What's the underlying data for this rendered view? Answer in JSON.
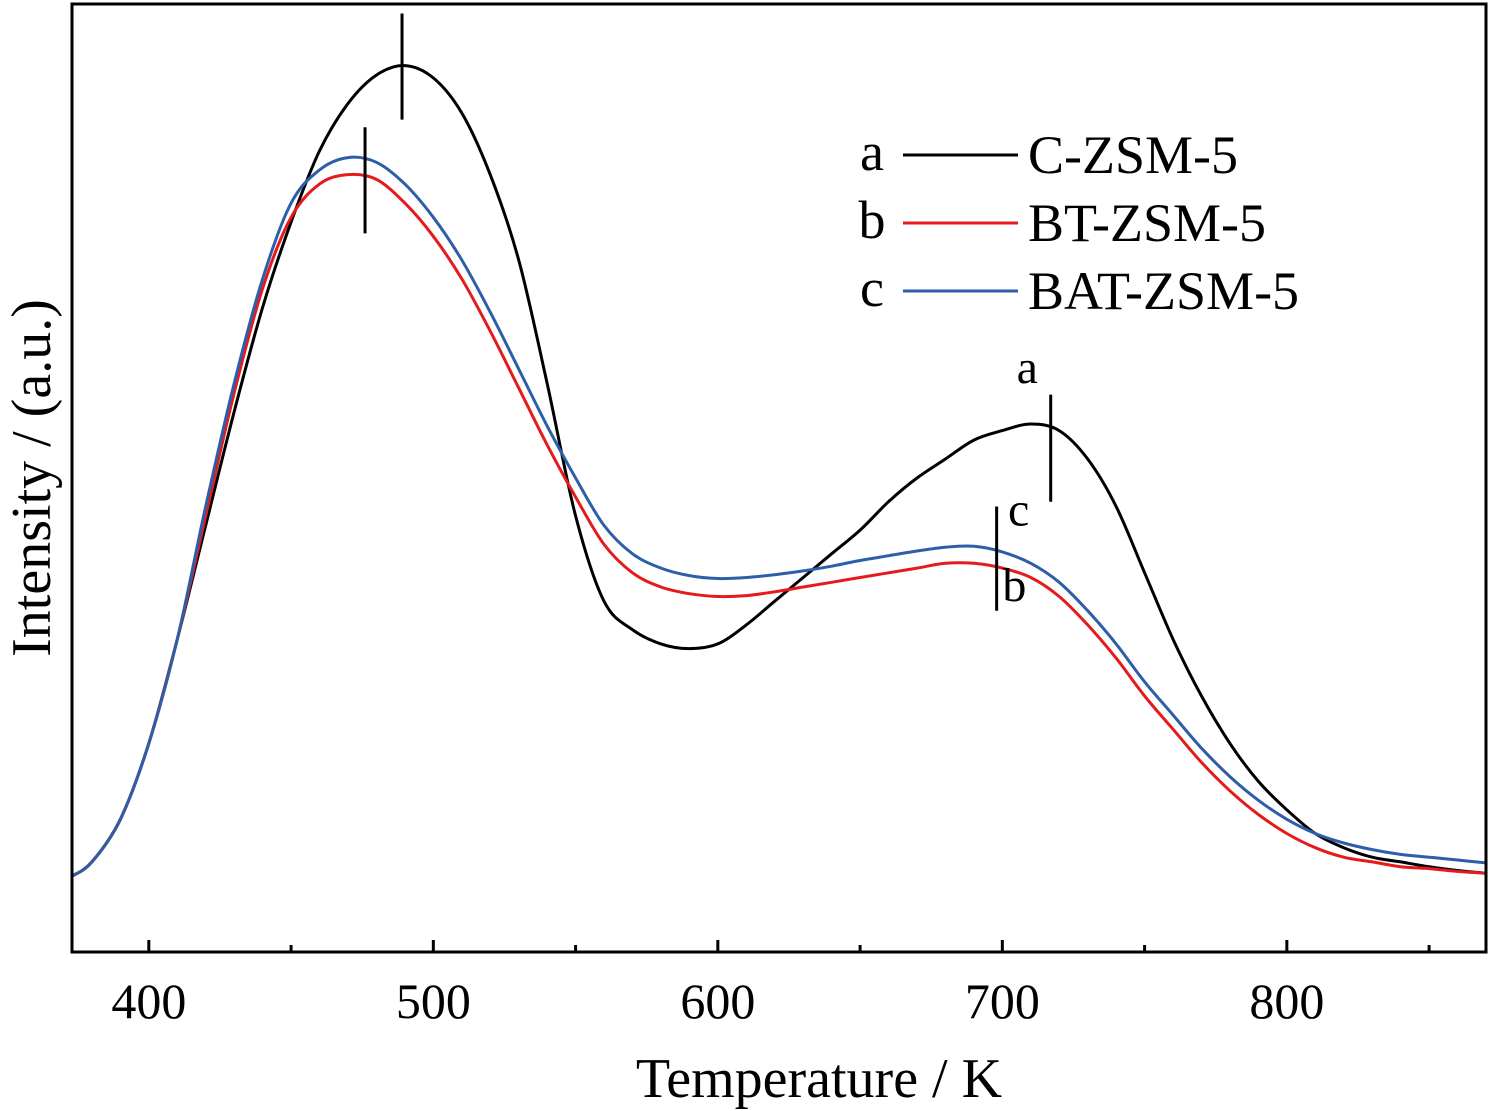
{
  "chart_data": {
    "type": "line",
    "xlabel": "Temperature / K",
    "ylabel": "Intensity / (a.u.)",
    "xlim": [
      373,
      870
    ],
    "ylim": [
      0,
      1.0
    ],
    "x_ticks": [
      400,
      500,
      600,
      700,
      800
    ],
    "x_minor_ticks": [
      450,
      550,
      650,
      750,
      850
    ],
    "y_tick_labels": false,
    "grid": false,
    "legend_position": "top-right",
    "series": [
      {
        "key": "a",
        "name": "C-ZSM-5",
        "color": "#000000",
        "x": [
          373,
          380,
          390,
          400,
          410,
          420,
          430,
          440,
          450,
          460,
          470,
          480,
          490,
          500,
          510,
          520,
          530,
          540,
          550,
          560,
          570,
          580,
          590,
          600,
          610,
          620,
          630,
          640,
          650,
          660,
          670,
          680,
          690,
          700,
          710,
          720,
          730,
          740,
          750,
          760,
          770,
          780,
          790,
          800,
          810,
          820,
          830,
          840,
          850,
          860,
          870
        ],
        "y": [
          0.08,
          0.095,
          0.14,
          0.22,
          0.33,
          0.45,
          0.57,
          0.68,
          0.77,
          0.845,
          0.895,
          0.925,
          0.935,
          0.922,
          0.885,
          0.82,
          0.73,
          0.6,
          0.46,
          0.37,
          0.34,
          0.325,
          0.32,
          0.325,
          0.345,
          0.37,
          0.395,
          0.42,
          0.445,
          0.475,
          0.5,
          0.52,
          0.54,
          0.55,
          0.557,
          0.55,
          0.52,
          0.47,
          0.4,
          0.33,
          0.27,
          0.22,
          0.18,
          0.15,
          0.125,
          0.11,
          0.1,
          0.095,
          0.09,
          0.086,
          0.083
        ]
      },
      {
        "key": "b",
        "name": "BT-ZSM-5",
        "color": "#e41a1c",
        "x": [
          373,
          380,
          390,
          400,
          410,
          420,
          430,
          440,
          450,
          460,
          470,
          480,
          490,
          500,
          510,
          520,
          530,
          540,
          550,
          560,
          570,
          580,
          590,
          600,
          610,
          620,
          630,
          640,
          650,
          660,
          670,
          680,
          690,
          700,
          710,
          720,
          730,
          740,
          750,
          760,
          770,
          780,
          790,
          800,
          810,
          820,
          830,
          840,
          850,
          860,
          870
        ],
        "y": [
          0.08,
          0.095,
          0.14,
          0.22,
          0.33,
          0.46,
          0.59,
          0.7,
          0.775,
          0.81,
          0.82,
          0.815,
          0.79,
          0.755,
          0.71,
          0.655,
          0.595,
          0.535,
          0.48,
          0.43,
          0.4,
          0.385,
          0.378,
          0.375,
          0.376,
          0.38,
          0.385,
          0.39,
          0.395,
          0.4,
          0.405,
          0.41,
          0.41,
          0.405,
          0.395,
          0.375,
          0.345,
          0.31,
          0.27,
          0.235,
          0.2,
          0.17,
          0.145,
          0.125,
          0.11,
          0.1,
          0.095,
          0.09,
          0.088,
          0.085,
          0.083
        ]
      },
      {
        "key": "c",
        "name": "BAT-ZSM-5",
        "color": "#2e5ea8",
        "x": [
          373,
          380,
          390,
          400,
          410,
          420,
          430,
          440,
          450,
          460,
          470,
          480,
          490,
          500,
          510,
          520,
          530,
          540,
          550,
          560,
          570,
          580,
          590,
          600,
          610,
          620,
          630,
          640,
          650,
          660,
          670,
          680,
          690,
          700,
          710,
          720,
          730,
          740,
          750,
          760,
          770,
          780,
          790,
          800,
          810,
          820,
          830,
          840,
          850,
          860,
          870
        ],
        "y": [
          0.08,
          0.095,
          0.14,
          0.22,
          0.33,
          0.47,
          0.6,
          0.71,
          0.79,
          0.825,
          0.838,
          0.833,
          0.81,
          0.775,
          0.73,
          0.675,
          0.615,
          0.555,
          0.5,
          0.45,
          0.42,
          0.405,
          0.397,
          0.394,
          0.395,
          0.398,
          0.402,
          0.407,
          0.413,
          0.418,
          0.423,
          0.427,
          0.428,
          0.422,
          0.41,
          0.39,
          0.36,
          0.325,
          0.285,
          0.25,
          0.215,
          0.185,
          0.16,
          0.14,
          0.125,
          0.115,
          0.108,
          0.103,
          0.1,
          0.097,
          0.094
        ]
      }
    ],
    "peak_markers": [
      {
        "x": 489,
        "y_bottom": 0.878,
        "y_top": 0.99
      },
      {
        "x": 476,
        "y_bottom": 0.758,
        "y_top": 0.87
      },
      {
        "x": 717,
        "y_bottom": 0.475,
        "y_top": 0.588
      },
      {
        "x": 698,
        "y_bottom": 0.36,
        "y_top": 0.47
      }
    ],
    "annotations": [
      {
        "text": "a",
        "x": 705,
        "y": 0.6
      },
      {
        "text": "c",
        "x": 702,
        "y": 0.45
      },
      {
        "text": "b",
        "x": 700,
        "y": 0.37
      }
    ]
  }
}
